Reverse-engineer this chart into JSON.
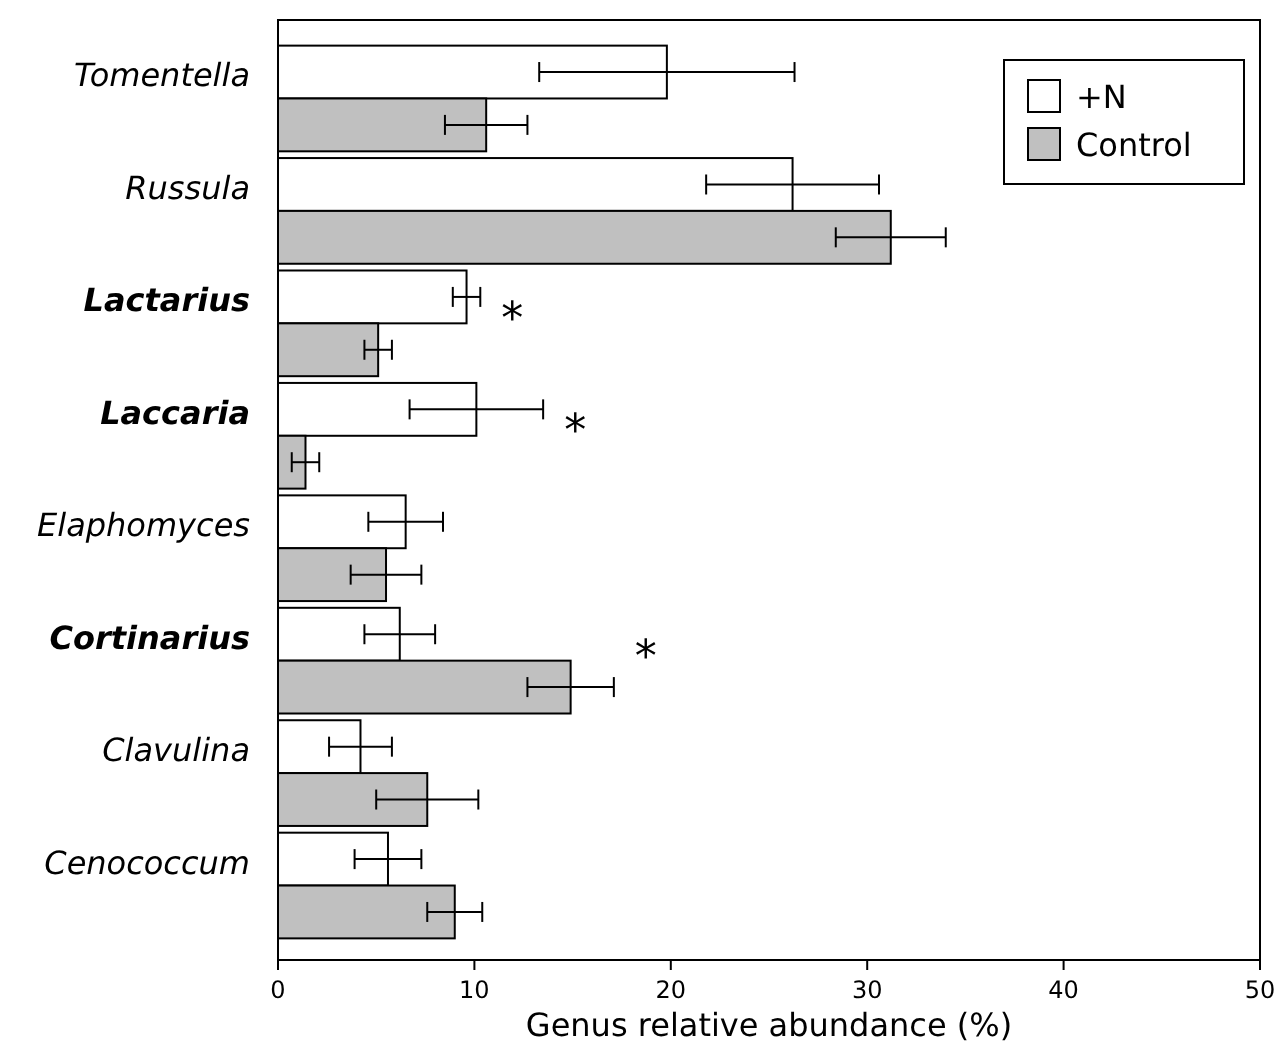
{
  "chart_data": {
    "type": "bar",
    "orientation": "horizontal",
    "xlabel": "Genus relative abundance (%)",
    "categories": [
      "Tomentella",
      "Russula",
      "Lactarius",
      "Laccaria",
      "Elaphomyces",
      "Cortinarius",
      "Clavulina",
      "Cenococcum"
    ],
    "series": [
      {
        "name": "+N",
        "color": "#ffffff",
        "values": [
          19.8,
          26.2,
          9.6,
          10.1,
          6.5,
          6.2,
          4.2,
          5.6
        ],
        "errors": [
          6.5,
          4.4,
          0.7,
          3.4,
          1.9,
          1.8,
          1.6,
          1.7
        ],
        "value_labels": [
          null,
          null,
          "*",
          "*",
          null,
          null,
          null,
          null
        ]
      },
      {
        "name": "Control",
        "color": "#c0c0c0",
        "values": [
          10.6,
          31.2,
          5.1,
          1.4,
          5.5,
          14.9,
          7.6,
          9.0
        ],
        "errors": [
          2.1,
          2.8,
          0.7,
          0.7,
          1.8,
          2.2,
          2.6,
          1.4
        ],
        "value_labels": [
          null,
          null,
          null,
          null,
          null,
          "*",
          null,
          null
        ]
      }
    ],
    "xlim": [
      0,
      50
    ],
    "xticks": [
      0,
      10,
      20,
      30,
      40,
      50
    ],
    "legend": "top right",
    "grid": false
  }
}
